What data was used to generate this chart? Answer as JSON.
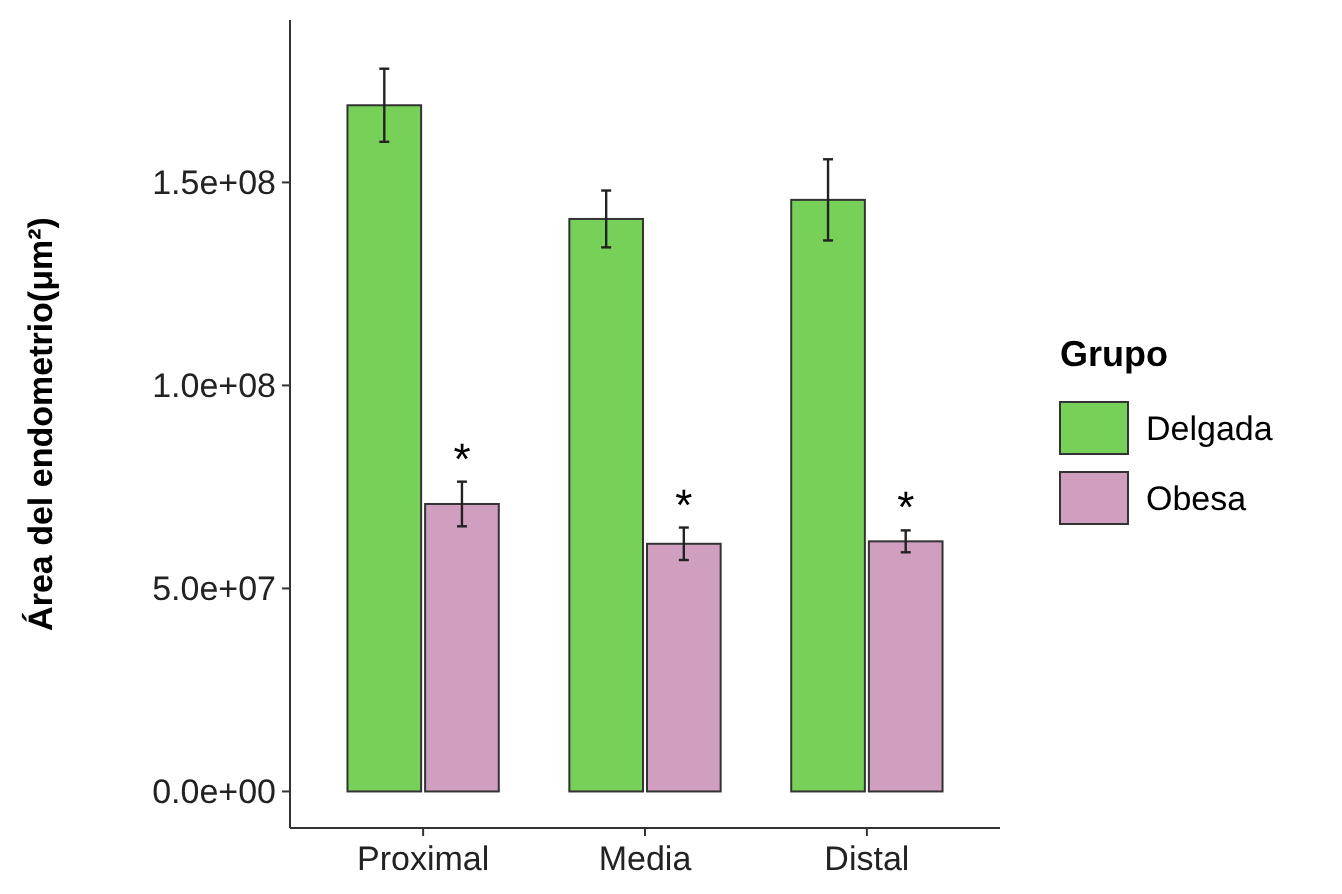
{
  "chart_data": {
    "type": "bar",
    "ylabel": "Área del endometrio(μm²)",
    "legend_title": "Grupo",
    "categories": [
      "Proximal",
      "Media",
      "Distal"
    ],
    "series": [
      {
        "name": "Delgada",
        "color": "#77d158",
        "values": [
          169000000.0,
          141000000.0,
          145700000.0
        ],
        "errors": [
          9000000.0,
          7000000.0,
          10000000.0
        ]
      },
      {
        "name": "Obesa",
        "color": "#d09ebe",
        "values": [
          70800000.0,
          61000000.0,
          61600000.0
        ],
        "errors": [
          5500000.0,
          4000000.0,
          2700000.0
        ]
      }
    ],
    "ylim": [
      -9000000.0,
      190000000.0
    ],
    "yticks": [
      {
        "value": 0,
        "label": "0.0e+00"
      },
      {
        "value": 50000000.0,
        "label": "5.0e+07"
      },
      {
        "value": 100000000.0,
        "label": "1.0e+08"
      },
      {
        "value": 150000000.0,
        "label": "1.5e+08"
      }
    ],
    "annotations": [
      {
        "text": "*",
        "x": "Proximal",
        "y": 76300000.0
      },
      {
        "text": "*",
        "x": "Media",
        "y": 65000000.0
      },
      {
        "text": "*",
        "x": "Distal",
        "y": 64300000.0
      }
    ],
    "legend": "right",
    "grid": false
  }
}
